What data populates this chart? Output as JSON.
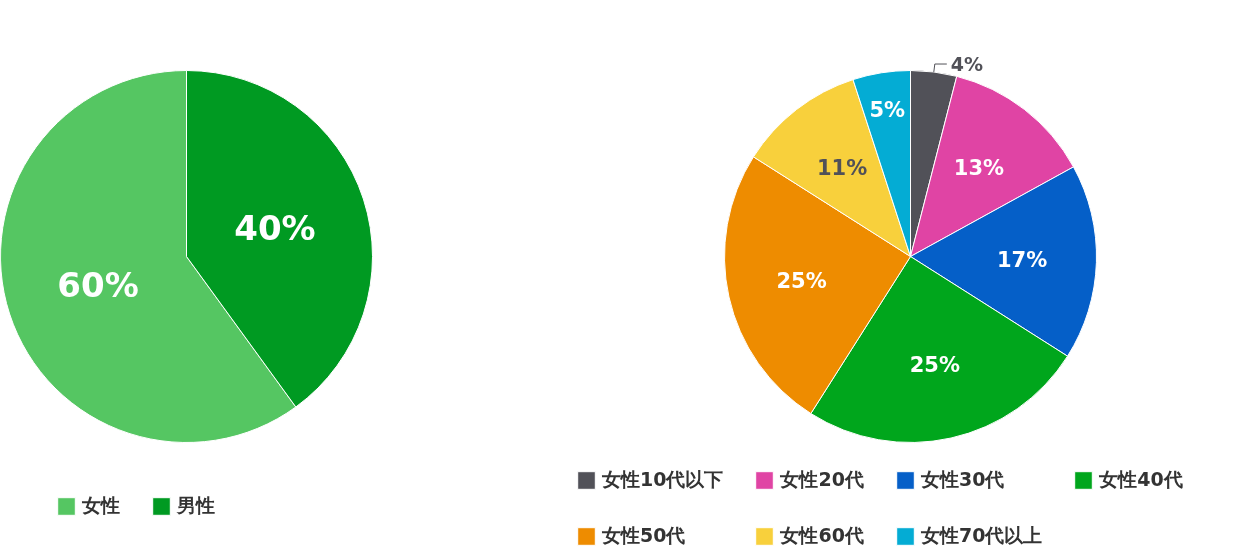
{
  "chart_data": [
    {
      "type": "pie",
      "categories": [
        "女性",
        "男性"
      ],
      "values": [
        60,
        40
      ],
      "colors": [
        "#55c662",
        "#009a22"
      ],
      "value_labels": [
        "60%",
        "40%"
      ],
      "legend": "bottom"
    },
    {
      "type": "pie",
      "categories": [
        "女性10代以下",
        "女性20代",
        "女性30代",
        "女性40代",
        "女性50代",
        "女性60代",
        "女性70代以上"
      ],
      "values": [
        4,
        13,
        17,
        25,
        25,
        11,
        5
      ],
      "colors": [
        "#515158",
        "#e044a4",
        "#055fc8",
        "#00a61c",
        "#ee8c00",
        "#f8d03c",
        "#04acd4"
      ],
      "value_labels": [
        "4%",
        "13%",
        "17%",
        "25%",
        "25%",
        "11%",
        "5%"
      ],
      "legend": "bottom"
    }
  ]
}
